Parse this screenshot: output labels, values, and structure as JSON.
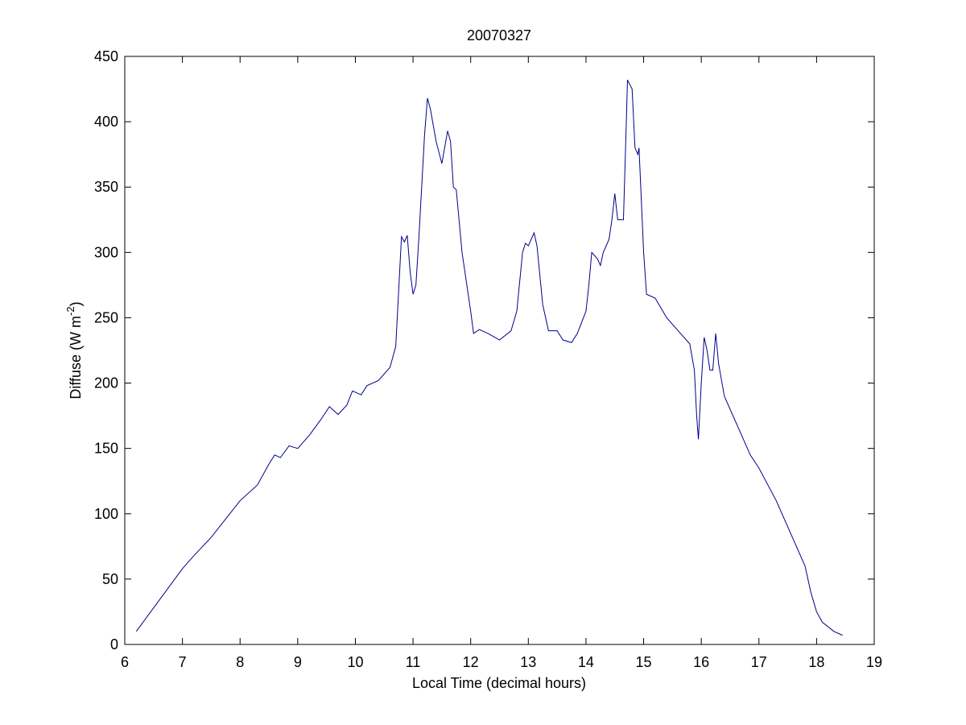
{
  "chart_data": {
    "type": "line",
    "title": "20070327",
    "xlabel": "Local Time (decimal hours)",
    "ylabel": [
      "Diffuse (W m",
      "-2",
      ")"
    ],
    "xlim": [
      6,
      19
    ],
    "ylim": [
      0,
      450
    ],
    "xticks": [
      6,
      7,
      8,
      9,
      10,
      11,
      12,
      13,
      14,
      15,
      16,
      17,
      18,
      19
    ],
    "yticks": [
      0,
      50,
      100,
      150,
      200,
      250,
      300,
      350,
      400,
      450
    ],
    "grid": false,
    "series": [
      {
        "color": "#00008b",
        "x": [
          6.2,
          6.5,
          7.0,
          7.2,
          7.5,
          8.0,
          8.3,
          8.5,
          8.6,
          8.7,
          8.85,
          9.0,
          9.2,
          9.4,
          9.55,
          9.7,
          9.85,
          9.95,
          10.1,
          10.2,
          10.4,
          10.6,
          10.7,
          10.8,
          10.85,
          10.9,
          10.95,
          11.0,
          11.05,
          11.1,
          11.2,
          11.25,
          11.3,
          11.4,
          11.5,
          11.6,
          11.65,
          11.7,
          11.75,
          11.85,
          12.0,
          12.05,
          12.15,
          12.3,
          12.5,
          12.7,
          12.8,
          12.9,
          12.95,
          13.0,
          13.1,
          13.15,
          13.25,
          13.35,
          13.5,
          13.6,
          13.75,
          13.85,
          14.0,
          14.05,
          14.1,
          14.2,
          14.25,
          14.3,
          14.4,
          14.45,
          14.5,
          14.55,
          14.65,
          14.7,
          14.72,
          14.8,
          14.85,
          14.9,
          14.92,
          15.0,
          15.05,
          15.2,
          15.4,
          15.6,
          15.8,
          15.88,
          15.92,
          15.95,
          16.0,
          16.05,
          16.1,
          16.15,
          16.2,
          16.25,
          16.3,
          16.4,
          16.5,
          16.7,
          16.85,
          17.0,
          17.3,
          17.6,
          17.8,
          17.9,
          18.0,
          18.1,
          18.3,
          18.45
        ],
        "values": [
          10,
          28,
          58,
          68,
          82,
          110,
          122,
          138,
          145,
          143,
          152,
          150,
          160,
          172,
          182,
          176,
          183,
          194,
          191,
          198,
          202,
          212,
          228,
          312,
          308,
          313,
          285,
          268,
          275,
          310,
          390,
          418,
          410,
          385,
          368,
          393,
          385,
          350,
          348,
          300,
          255,
          238,
          241,
          238,
          233,
          240,
          255,
          300,
          307,
          305,
          315,
          305,
          260,
          240,
          240,
          233,
          231,
          238,
          255,
          275,
          300,
          295,
          290,
          300,
          310,
          325,
          345,
          325,
          325,
          400,
          432,
          425,
          380,
          375,
          380,
          300,
          268,
          265,
          250,
          240,
          230,
          210,
          175,
          157,
          200,
          235,
          225,
          210,
          210,
          238,
          215,
          190,
          180,
          160,
          145,
          135,
          110,
          80,
          60,
          40,
          25,
          17,
          10,
          7
        ]
      }
    ]
  }
}
